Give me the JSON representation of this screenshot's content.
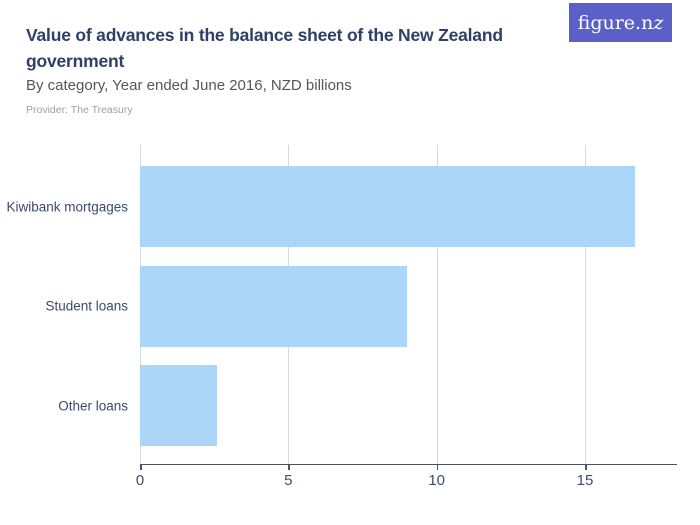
{
  "header": {
    "title": "Value of advances in the balance sheet of the New Zealand government",
    "subtitle": "By category, Year ended June 2016, NZD billions",
    "provider": "Provider: The Treasury",
    "logo": {
      "prefix": "figure.n",
      "suffix": "z",
      "full_name": "figure.nz"
    }
  },
  "colors": {
    "bar": "#acd6f8",
    "gridline": "#d9d9d9",
    "axis_line": "#4b5260",
    "tick_label": "#3d4e6d",
    "category_label": "#3a4a6b",
    "title": "#2d4066",
    "subtitle": "#54565c",
    "provider": "#9da0a4",
    "logo_background": "#5a60c8",
    "background": "#ffffff"
  },
  "chart_data": {
    "type": "bar",
    "orientation": "horizontal",
    "title": "Value of advances in the balance sheet of the New Zealand government",
    "subtitle": "By category, Year ended June 2016, NZD billions",
    "unit": "NZD billions",
    "categories": [
      "Kiwibank mortgages",
      "Student loans",
      "Other loans"
    ],
    "values": [
      16.7,
      9.0,
      2.6
    ],
    "xlabel": "",
    "ylabel": "",
    "xlim": [
      0,
      18.1
    ],
    "xticks": [
      0,
      5,
      10,
      15
    ],
    "grid": true,
    "legend": false
  }
}
